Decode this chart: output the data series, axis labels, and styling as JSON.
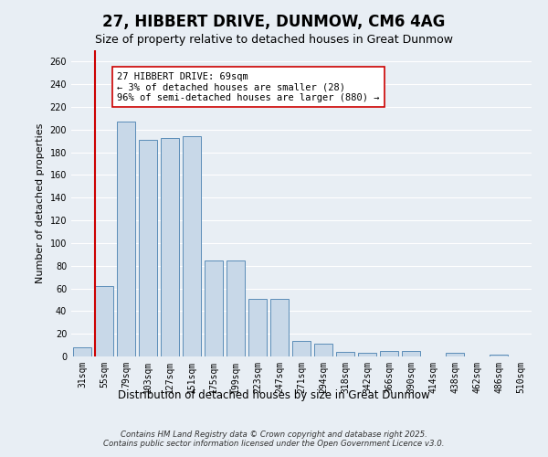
{
  "title": "27, HIBBERT DRIVE, DUNMOW, CM6 4AG",
  "subtitle": "Size of property relative to detached houses in Great Dunmow",
  "xlabel": "Distribution of detached houses by size in Great Dunmow",
  "ylabel": "Number of detached properties",
  "categories": [
    "31sqm",
    "55sqm",
    "79sqm",
    "103sqm",
    "127sqm",
    "151sqm",
    "175sqm",
    "199sqm",
    "223sqm",
    "247sqm",
    "271sqm",
    "294sqm",
    "318sqm",
    "342sqm",
    "366sqm",
    "390sqm",
    "414sqm",
    "438sqm",
    "462sqm",
    "486sqm",
    "510sqm"
  ],
  "values": [
    8,
    62,
    207,
    191,
    193,
    194,
    85,
    85,
    51,
    51,
    14,
    11,
    4,
    3,
    5,
    5,
    0,
    3,
    0,
    2,
    0
  ],
  "bar_color": "#c8d8e8",
  "bar_edge_color": "#5b8db8",
  "background_color": "#e8eef4",
  "grid_color": "#ffffff",
  "vline_color": "#cc0000",
  "vline_x_index": 1,
  "annotation_text": "27 HIBBERT DRIVE: 69sqm\n← 3% of detached houses are smaller (28)\n96% of semi-detached houses are larger (880) →",
  "annotation_box_color": "#ffffff",
  "annotation_box_edge_color": "#cc0000",
  "copyright_text": "Contains HM Land Registry data © Crown copyright and database right 2025.\nContains public sector information licensed under the Open Government Licence v3.0.",
  "ylim": [
    0,
    270
  ],
  "yticks": [
    0,
    20,
    40,
    60,
    80,
    100,
    120,
    140,
    160,
    180,
    200,
    220,
    240,
    260
  ]
}
